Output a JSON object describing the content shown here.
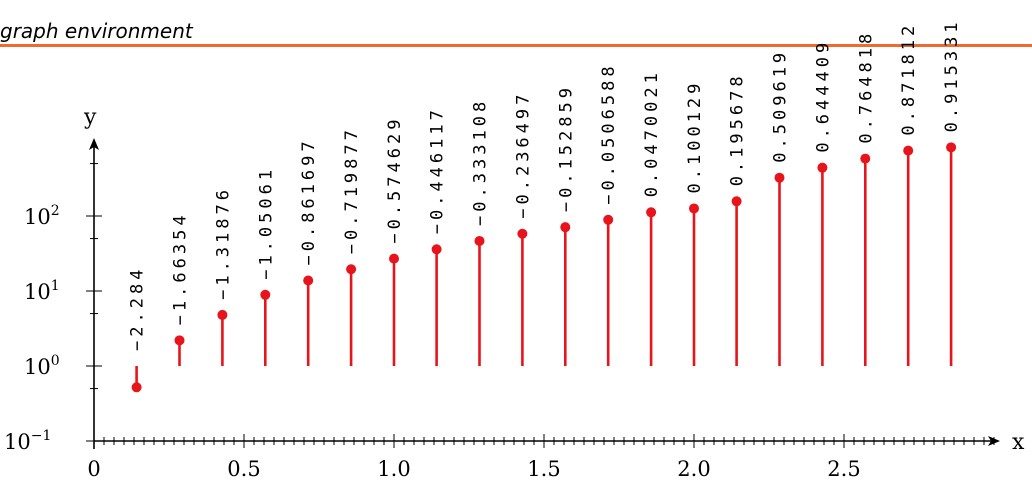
{
  "header": {
    "title": "graph environment",
    "rule_color": "#ee6a30"
  },
  "chart_data": {
    "type": "stem",
    "xlabel": "x",
    "ylabel": "y",
    "xlim": [
      0,
      3
    ],
    "ylim": [
      0.1,
      2000
    ],
    "yscale": "log",
    "x_ticks": [
      "0",
      "0.5",
      "1.0",
      "1.5",
      "2.0",
      "2.5"
    ],
    "y_ticks": [
      {
        "base": "10",
        "exp": "−1"
      },
      {
        "base": "10",
        "exp": "0"
      },
      {
        "base": "10",
        "exp": "1"
      },
      {
        "base": "10",
        "exp": "2"
      }
    ],
    "color": "#e8141b",
    "points": [
      {
        "x": 0.142,
        "y": 0.52,
        "label": "−2.284"
      },
      {
        "x": 0.285,
        "y": 2.2,
        "label": "−1.66354"
      },
      {
        "x": 0.428,
        "y": 4.8,
        "label": "−1.31876"
      },
      {
        "x": 0.571,
        "y": 8.9,
        "label": "−1.05061"
      },
      {
        "x": 0.714,
        "y": 13.8,
        "label": "−0.861697"
      },
      {
        "x": 0.857,
        "y": 19.5,
        "label": "−0.719877"
      },
      {
        "x": 1.0,
        "y": 27,
        "label": "−0.574629"
      },
      {
        "x": 1.142,
        "y": 36,
        "label": "−0.446117"
      },
      {
        "x": 1.285,
        "y": 46.5,
        "label": "−0.333108"
      },
      {
        "x": 1.428,
        "y": 58,
        "label": "−0.236497"
      },
      {
        "x": 1.571,
        "y": 71,
        "label": "−0.152859"
      },
      {
        "x": 1.714,
        "y": 89,
        "label": "−0.0506588"
      },
      {
        "x": 1.857,
        "y": 112,
        "label": "0.0470021"
      },
      {
        "x": 2.0,
        "y": 126,
        "label": "0.100129"
      },
      {
        "x": 2.142,
        "y": 157,
        "label": "0.195678"
      },
      {
        "x": 2.285,
        "y": 324,
        "label": "0.509619"
      },
      {
        "x": 2.428,
        "y": 441,
        "label": "0.644409"
      },
      {
        "x": 2.571,
        "y": 582,
        "label": "0.764818"
      },
      {
        "x": 2.714,
        "y": 744,
        "label": "0.871812"
      },
      {
        "x": 2.857,
        "y": 823,
        "label": "0.915331"
      }
    ]
  }
}
